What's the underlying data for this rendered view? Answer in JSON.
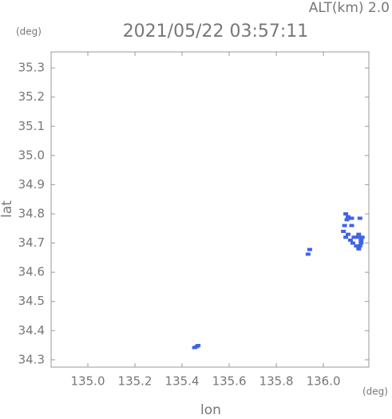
{
  "chart_data": {
    "type": "scatter",
    "title": "2021/05/22 03:57:11",
    "annotation": "ALT(km) 2.0",
    "y_unit": "(deg)",
    "x_unit": "(deg)",
    "x_label": "lon",
    "y_label": "lat",
    "color": "#3f63e6",
    "xlim": [
      134.844,
      136.193
    ],
    "ylim": [
      34.275,
      35.355
    ],
    "xticks": [
      {
        "value": 135.0,
        "label": "135.0"
      },
      135.2,
      135.4,
      135.6,
      135.8,
      {
        "value": 136.0,
        "label": "136.0"
      }
    ],
    "yticks": [
      34.3,
      34.4,
      34.5,
      34.6,
      34.7,
      34.8,
      34.9,
      {
        "value": 35.0,
        "label": "35.0"
      },
      35.1,
      35.2,
      35.3
    ],
    "x": [
      135.453,
      135.462,
      135.468,
      135.935,
      135.942,
      136.085,
      136.09,
      136.095,
      136.1,
      136.105,
      136.11,
      136.115,
      136.12,
      136.125,
      136.14,
      136.145,
      136.15,
      136.155,
      136.16,
      136.165,
      136.13,
      136.12,
      136.095,
      136.105,
      136.155,
      136.16,
      136.15
    ],
    "values": [
      34.342,
      34.345,
      34.349,
      34.662,
      34.678,
      34.74,
      34.76,
      34.72,
      34.78,
      34.73,
      34.785,
      34.71,
      34.785,
      34.7,
      34.69,
      34.72,
      34.73,
      34.69,
      34.71,
      34.72,
      34.72,
      34.76,
      34.8,
      34.79,
      34.785,
      34.7,
      34.68
    ]
  }
}
